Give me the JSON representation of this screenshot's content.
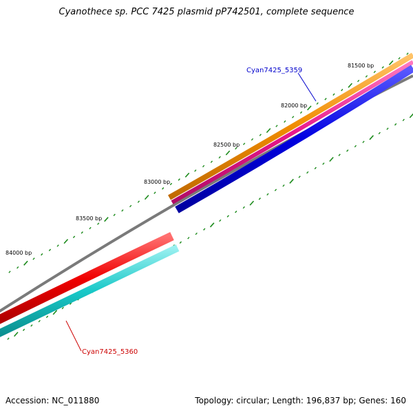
{
  "title": "Cyanothece sp. PCC 7425 plasmid pP742501, complete sequence",
  "footer": {
    "accession": "Accession: NC_011880",
    "summary": "Topology: circular; Length: 196,837 bp; Genes: 160"
  },
  "ticks": [
    "81500 bp",
    "82000 bp",
    "82500 bp",
    "83000 bp",
    "83500 bp",
    "84000 bp"
  ],
  "genes": [
    {
      "name": "Cyan7425_5359",
      "label_color": "#0000cc",
      "line_color": "#0000cc"
    },
    {
      "name": "Cyan7425_5360",
      "label_color": "#cc0000",
      "line_color": "#cc0000"
    }
  ],
  "colors": {
    "orange_track": "#f0900a",
    "pink_track": "#e8198c",
    "blue_track": "#0000e0",
    "backbone": "#808080",
    "red_track": "#f00000",
    "cyan_track": "#19c8c8",
    "tick": "#1a8a1a"
  }
}
